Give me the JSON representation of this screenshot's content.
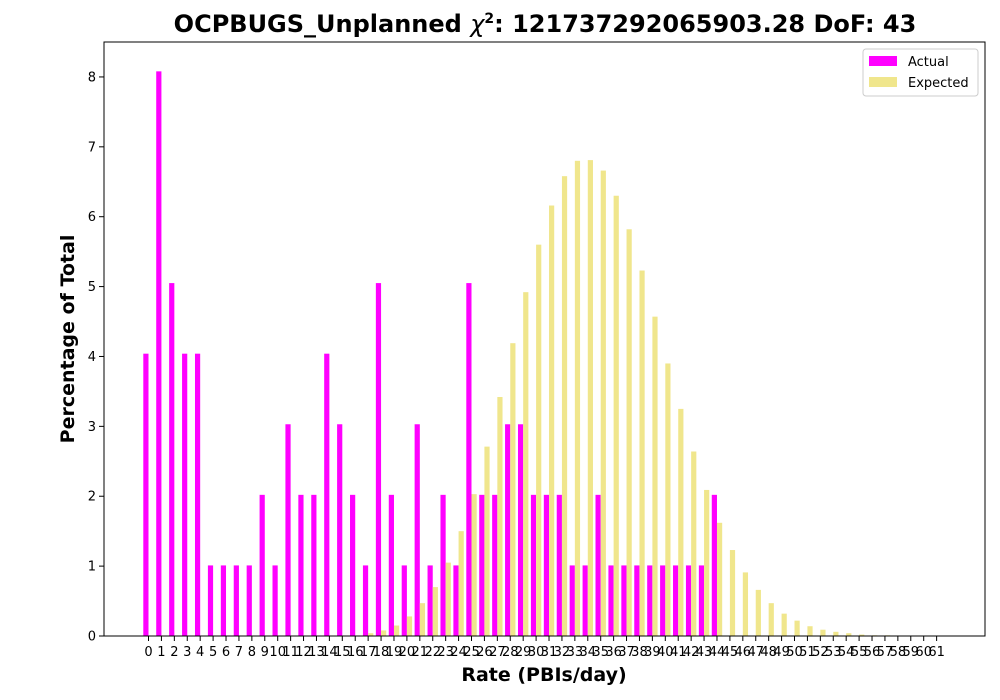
{
  "chart_data": {
    "type": "bar",
    "title_prefix": "OCPBUGS_Unplanned ",
    "title_chi": "χ",
    "title_sup": "2",
    "title_suffix": ": 121737292065903.28 DoF: 43",
    "xlabel": "Rate (PBIs/day)",
    "ylabel": "Percentage of Total",
    "ylim": [
      0,
      8.5
    ],
    "yticks": [
      0,
      1,
      2,
      3,
      4,
      5,
      6,
      7,
      8
    ],
    "categories": [
      "0",
      "1",
      "2",
      "3",
      "4",
      "5",
      "6",
      "7",
      "8",
      "9",
      "10",
      "11",
      "12",
      "13",
      "14",
      "15",
      "16",
      "17",
      "18",
      "19",
      "20",
      "21",
      "22",
      "23",
      "24",
      "25",
      "26",
      "27",
      "28",
      "29",
      "30",
      "31",
      "32",
      "33",
      "34",
      "35",
      "36",
      "37",
      "38",
      "39",
      "40",
      "41",
      "42",
      "43",
      "44",
      "45",
      "46",
      "47",
      "48",
      "49",
      "50",
      "51",
      "52",
      "53",
      "54",
      "55",
      "56",
      "57",
      "58",
      "59",
      "60",
      "61"
    ],
    "legend_position": "top-right",
    "series": [
      {
        "name": "Actual",
        "color": "#ff00ff",
        "values": [
          4.04,
          8.08,
          5.05,
          4.04,
          4.04,
          1.01,
          1.01,
          1.01,
          1.01,
          2.02,
          1.01,
          3.03,
          2.02,
          2.02,
          4.04,
          3.03,
          2.02,
          1.01,
          5.05,
          2.02,
          1.01,
          3.03,
          1.01,
          2.02,
          1.01,
          5.05,
          2.02,
          2.02,
          3.03,
          3.03,
          2.02,
          2.02,
          2.02,
          1.01,
          1.01,
          2.02,
          1.01,
          1.01,
          1.01,
          1.01,
          1.01,
          1.01,
          1.01,
          1.01,
          2.02,
          0,
          0,
          0,
          0,
          0,
          0,
          0,
          0,
          0,
          0,
          0,
          0,
          0,
          0,
          0,
          0,
          0
        ]
      },
      {
        "name": "Expected",
        "color": "#f0e68c",
        "values": [
          0,
          0,
          0,
          0,
          0,
          0,
          0,
          0,
          0,
          0,
          0,
          0,
          0,
          0,
          0,
          0,
          0,
          0.04,
          0.08,
          0.15,
          0.28,
          0.47,
          0.7,
          1.05,
          1.5,
          2.03,
          2.71,
          3.42,
          4.19,
          4.92,
          5.6,
          6.16,
          6.58,
          6.8,
          6.81,
          6.66,
          6.3,
          5.82,
          5.23,
          4.57,
          3.9,
          3.25,
          2.64,
          2.09,
          1.62,
          1.23,
          0.91,
          0.66,
          0.47,
          0.32,
          0.22,
          0.14,
          0.09,
          0.06,
          0.04,
          0.02,
          0.01,
          0.01,
          0.0,
          0.0,
          0.0,
          0.0
        ]
      }
    ]
  }
}
